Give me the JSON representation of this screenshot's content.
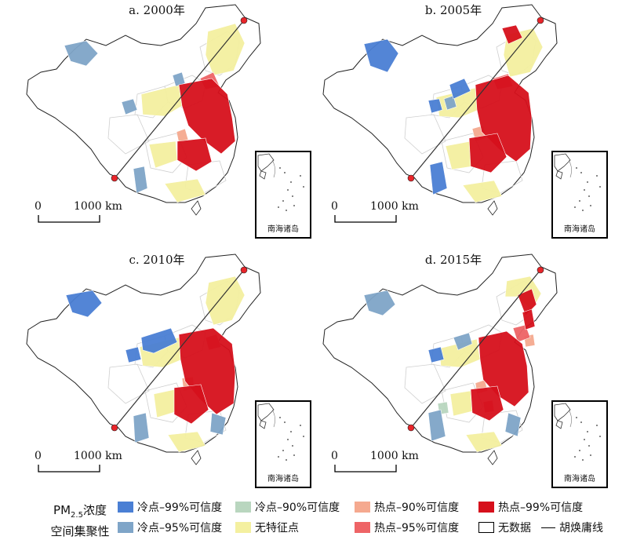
{
  "colors": {
    "cold99": "#4a7fd4",
    "cold95": "#7fa5c8",
    "cold90": "#b9d6bf",
    "neutral": "#f4f0a0",
    "hot90": "#f5a98f",
    "hot95": "#ee6466",
    "hot99": "#d6101c",
    "boundary": "#cfcfcf",
    "outline": "#222222",
    "huline": "#333333",
    "dot": "#e8252a"
  },
  "panels": [
    {
      "id": "a",
      "title": "a. 2000年",
      "scale_zero": "0",
      "scale_label": "1000 km",
      "inset_label": "南海诸岛"
    },
    {
      "id": "b",
      "title": "b. 2005年",
      "scale_zero": "0",
      "scale_label": "1000 km",
      "inset_label": "南海诸岛"
    },
    {
      "id": "c",
      "title": "c. 2010年",
      "scale_zero": "0",
      "scale_label": "1000 km",
      "inset_label": "南海诸岛"
    },
    {
      "id": "d",
      "title": "d. 2015年",
      "scale_zero": "0",
      "scale_label": "1000 km",
      "inset_label": "南海诸岛"
    }
  ],
  "legend": {
    "title_line1": "PM",
    "title_sub": "2.5",
    "title_line1_tail": "浓度",
    "title_line2": "空间集聚性",
    "items": [
      {
        "label": "冷点–99%可信度",
        "color_key": "cold99"
      },
      {
        "label": "冷点–95%可信度",
        "color_key": "cold95"
      },
      {
        "label": "冷点–90%可信度",
        "color_key": "cold90"
      },
      {
        "label": "无特征点",
        "color_key": "neutral"
      },
      {
        "label": "热点–90%可信度",
        "color_key": "hot90"
      },
      {
        "label": "热点–95%可信度",
        "color_key": "hot95"
      },
      {
        "label": "热点–99%可信度",
        "color_key": "hot99"
      },
      {
        "label": "无数据",
        "color_key": "none"
      },
      {
        "label": "胡焕庸线",
        "color_key": "line"
      }
    ]
  }
}
